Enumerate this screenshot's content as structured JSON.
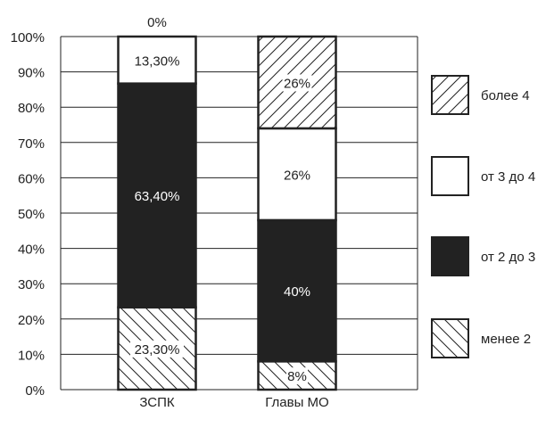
{
  "chart_data": {
    "type": "bar",
    "stacked": true,
    "categories": [
      "ЗСПК",
      "Главы МО"
    ],
    "series": [
      {
        "name": "менее 2",
        "values": [
          23.3,
          8
        ],
        "labels": [
          "23,30%",
          "8%"
        ],
        "fill": "hatch-back"
      },
      {
        "name": "от 2 до 3",
        "values": [
          63.4,
          40
        ],
        "labels": [
          "63,40%",
          "40%"
        ],
        "fill": "#222222"
      },
      {
        "name": "от 3 до 4",
        "values": [
          13.3,
          26
        ],
        "labels": [
          "13,30%",
          "26%"
        ],
        "fill": "#ffffff"
      },
      {
        "name": "более 4",
        "values": [
          0,
          26
        ],
        "labels": [
          "0%",
          "26%"
        ],
        "fill": "hatch-fwd"
      }
    ],
    "ylim": [
      0,
      100
    ],
    "yticks": [
      "0%",
      "10%",
      "20%",
      "30%",
      "40%",
      "50%",
      "60%",
      "70%",
      "80%",
      "90%",
      "100%"
    ],
    "grid": true,
    "legend_order": [
      "более 4",
      "от 3 до 4",
      "от 2 до 3",
      "менее 2"
    ],
    "legend_position": "right"
  }
}
